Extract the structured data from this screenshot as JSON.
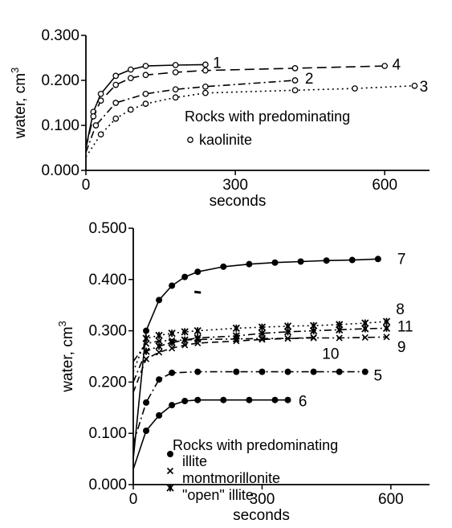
{
  "chart_data": [
    {
      "type": "line",
      "xlabel": "seconds",
      "ylabel": "water, cm",
      "ylabel_sup": "3",
      "xlim": [
        0,
        690
      ],
      "ylim": [
        0,
        0.3
      ],
      "xticks": [
        "0",
        "300",
        "600"
      ],
      "xtick_values": [
        0,
        300,
        600
      ],
      "yticks": [
        "0.000",
        "0.100",
        "0.200",
        "0.300"
      ],
      "ytick_values": [
        0,
        0.1,
        0.2,
        0.3
      ],
      "legend": {
        "title": "Rocks with predominating",
        "entries": [
          {
            "marker": "open-circle",
            "label": "kaolinite"
          }
        ]
      },
      "series": [
        {
          "label": "1",
          "marker": "open-circle",
          "dash": "solid",
          "x": [
            0,
            15,
            30,
            60,
            90,
            120,
            180,
            240
          ],
          "y": [
            0.05,
            0.13,
            0.17,
            0.21,
            0.224,
            0.232,
            0.234,
            0.235
          ],
          "label_at": [
            255,
            0.238
          ]
        },
        {
          "label": "4",
          "marker": "open-circle",
          "dash": "long",
          "x": [
            0,
            15,
            30,
            60,
            90,
            120,
            180,
            240,
            420,
            600
          ],
          "y": [
            0.05,
            0.12,
            0.155,
            0.19,
            0.205,
            0.212,
            0.218,
            0.222,
            0.227,
            0.232
          ],
          "label_at": [
            615,
            0.235
          ]
        },
        {
          "label": "2",
          "marker": "open-circle",
          "dash": "dashdot",
          "x": [
            0,
            20,
            60,
            120,
            180,
            240,
            420
          ],
          "y": [
            0.04,
            0.1,
            0.15,
            0.17,
            0.18,
            0.186,
            0.2
          ],
          "label_at": [
            440,
            0.204
          ]
        },
        {
          "label": "3",
          "marker": "open-circle",
          "dash": "dotted",
          "x": [
            0,
            30,
            60,
            90,
            120,
            180,
            240,
            420,
            540,
            660
          ],
          "y": [
            0.03,
            0.08,
            0.115,
            0.135,
            0.148,
            0.162,
            0.172,
            0.178,
            0.182,
            0.188
          ],
          "label_at": [
            670,
            0.186
          ]
        }
      ]
    },
    {
      "type": "line",
      "xlabel": "seconds",
      "ylabel": "water, cm",
      "ylabel_sup": "3",
      "xlim": [
        0,
        690
      ],
      "ylim": [
        0,
        0.5
      ],
      "xticks": [
        "0",
        "300",
        "600"
      ],
      "xtick_values": [
        0,
        300,
        600
      ],
      "yticks": [
        "0.000",
        "0.100",
        "0.200",
        "0.300",
        "0.400",
        "0.500"
      ],
      "ytick_values": [
        0,
        0.1,
        0.2,
        0.3,
        0.4,
        0.5
      ],
      "legend": {
        "title": "Rocks with predominating",
        "entries": [
          {
            "marker": "filled-circle",
            "label": "illite"
          },
          {
            "marker": "x",
            "label": "montmorillonite"
          },
          {
            "marker": "star",
            "label": "\"open\" illite"
          }
        ]
      },
      "series": [
        {
          "label": "7",
          "marker": "filled-circle",
          "dash": "solid",
          "x": [
            0,
            30,
            60,
            90,
            120,
            150,
            210,
            270,
            330,
            390,
            450,
            510,
            570
          ],
          "y": [
            0.05,
            0.3,
            0.36,
            0.388,
            0.405,
            0.415,
            0.425,
            0.43,
            0.433,
            0.435,
            0.437,
            0.438,
            0.44
          ],
          "label_at": [
            615,
            0.44
          ]
        },
        {
          "label": "8",
          "marker": "star",
          "dash": "dotted",
          "x": [
            0,
            30,
            60,
            90,
            120,
            150,
            240,
            300,
            360,
            420,
            480,
            540,
            590
          ],
          "y": [
            0.22,
            0.285,
            0.291,
            0.295,
            0.298,
            0.3,
            0.305,
            0.307,
            0.309,
            0.31,
            0.312,
            0.315,
            0.318
          ],
          "label_at": [
            612,
            0.342
          ]
        },
        {
          "label": "11",
          "marker": "star",
          "dash": "dashdot",
          "x": [
            0,
            30,
            60,
            90,
            120,
            150,
            240,
            300,
            360,
            420,
            480,
            540,
            590
          ],
          "y": [
            0.2,
            0.26,
            0.27,
            0.277,
            0.282,
            0.286,
            0.29,
            0.295,
            0.298,
            0.3,
            0.302,
            0.304,
            0.305
          ],
          "label_at": [
            615,
            0.308
          ]
        },
        {
          "label": "10",
          "marker": "x",
          "dash": "dashed",
          "x": [
            0,
            30,
            60,
            90,
            120,
            150,
            240,
            300,
            360,
            420
          ],
          "y": [
            0.18,
            0.245,
            0.258,
            0.266,
            0.272,
            0.276,
            0.28,
            0.283,
            0.285,
            0.287
          ],
          "label_at": [
            440,
            0.255
          ]
        },
        {
          "label": "9",
          "marker": "x",
          "dash": "dashdot",
          "x": [
            0,
            30,
            60,
            90,
            120,
            150,
            240,
            300,
            360,
            420,
            480,
            540,
            590
          ],
          "y": [
            0.24,
            0.275,
            0.28,
            0.281,
            0.282,
            0.283,
            0.284,
            0.285,
            0.285,
            0.286,
            0.286,
            0.287,
            0.288
          ],
          "label_at": [
            615,
            0.268
          ]
        },
        {
          "label": "5",
          "marker": "filled-circle",
          "dash": "dashdot",
          "x": [
            0,
            30,
            60,
            90,
            150,
            240,
            300,
            360,
            420,
            480,
            540
          ],
          "y": [
            0.08,
            0.16,
            0.205,
            0.218,
            0.22,
            0.22,
            0.22,
            0.22,
            0.22,
            0.22,
            0.22
          ],
          "label_at": [
            560,
            0.212
          ]
        },
        {
          "label": "6",
          "marker": "filled-circle",
          "dash": "solid",
          "x": [
            0,
            30,
            60,
            90,
            120,
            150,
            210,
            270,
            330,
            360
          ],
          "y": [
            0.03,
            0.105,
            0.135,
            0.155,
            0.163,
            0.165,
            0.165,
            0.165,
            0.165,
            0.165
          ],
          "label_at": [
            385,
            0.162
          ]
        }
      ],
      "stray_points": [
        {
          "x": 150,
          "y": 0.376
        }
      ]
    }
  ]
}
